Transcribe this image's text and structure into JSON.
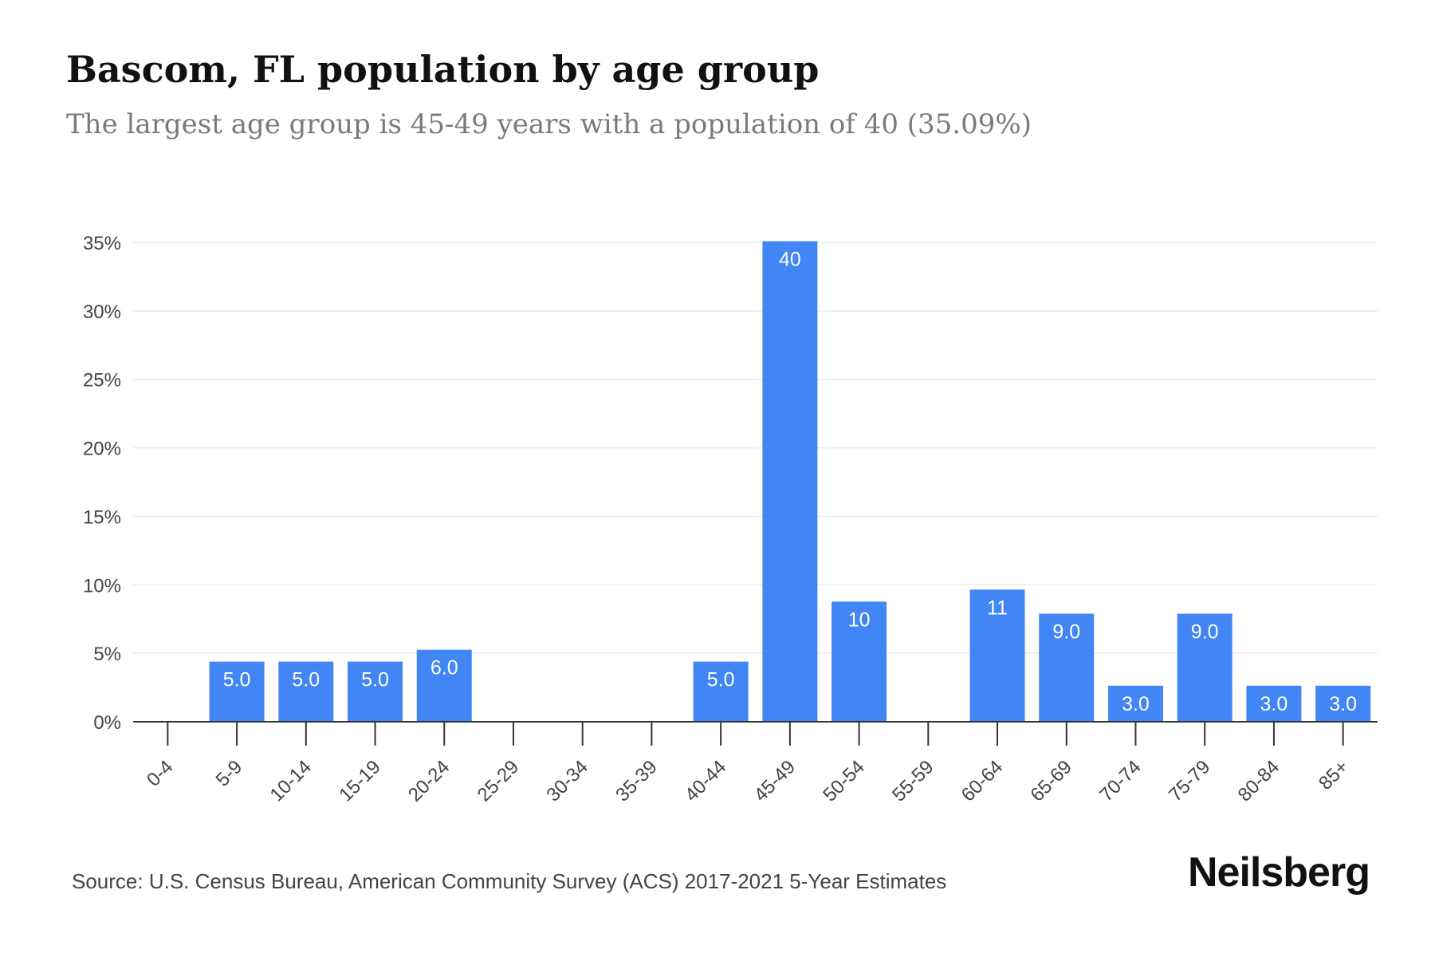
{
  "title": "Bascom, FL population by age group",
  "subtitle": "The largest age group is 45-49 years with a population of 40 (35.09%)",
  "source": "Source: U.S. Census Bureau, American Community Survey (ACS) 2017-2021 5-Year Estimates",
  "brand": "Neilsberg",
  "colors": {
    "bar": "#4285f4",
    "bar_label": "#ffffff",
    "grid": "#ebebeb",
    "axis": "#333333",
    "tick_text": "#444444"
  },
  "chart_data": {
    "type": "bar",
    "categories": [
      "0-4",
      "5-9",
      "10-14",
      "15-19",
      "20-24",
      "25-29",
      "30-34",
      "35-39",
      "40-44",
      "45-49",
      "50-54",
      "55-59",
      "60-64",
      "65-69",
      "70-74",
      "75-79",
      "80-84",
      "85+"
    ],
    "values": [
      0,
      4.39,
      4.39,
      4.39,
      5.26,
      0,
      0,
      0,
      4.39,
      35.09,
      8.77,
      0,
      9.65,
      7.89,
      2.63,
      7.89,
      2.63,
      2.63
    ],
    "data_labels": [
      "",
      "5.0",
      "5.0",
      "5.0",
      "6.0",
      "",
      "",
      "",
      "5.0",
      "40",
      "10",
      "",
      "11",
      "9.0",
      "3.0",
      "9.0",
      "3.0",
      "3.0"
    ],
    "y_ticks": [
      "0%",
      "5%",
      "10%",
      "15%",
      "20%",
      "25%",
      "30%",
      "35%"
    ],
    "ylim": [
      0,
      35
    ],
    "grid": true
  }
}
